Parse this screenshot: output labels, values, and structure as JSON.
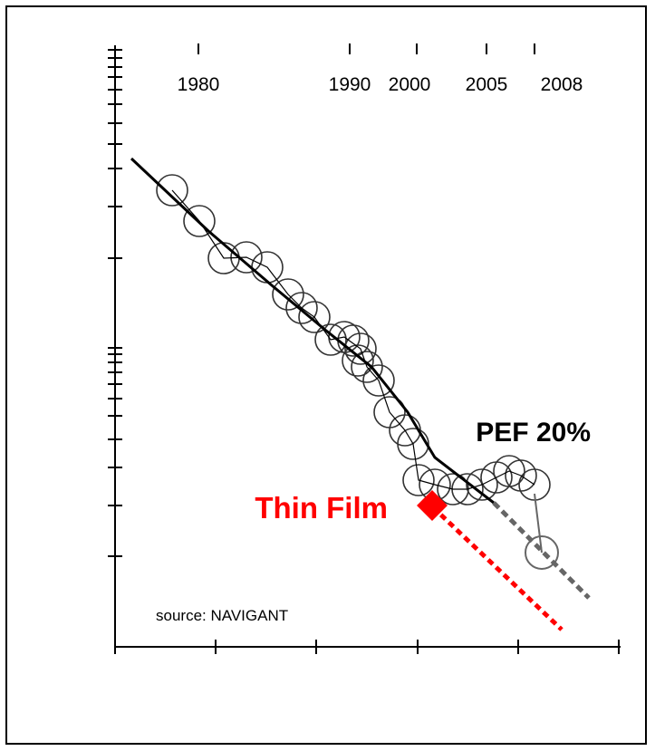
{
  "chart_data": {
    "type": "scatter",
    "title": "",
    "xlabel": "",
    "ylabel": "",
    "x_scale": "log",
    "y_scale": "log",
    "top_axis_labels": [
      "1980",
      "1990",
      "2000",
      "2005",
      "2008"
    ],
    "annotations": {
      "pef": "PEF 20%",
      "thin_film": "Thin Film",
      "source": "source: NAVIGANT"
    },
    "colors": {
      "markers": "#000000",
      "trend": "#000000",
      "thin_film": "#ff0000",
      "projection": "#666666",
      "highlight_2008": "#666666"
    },
    "grid": false,
    "legend": "none"
  }
}
